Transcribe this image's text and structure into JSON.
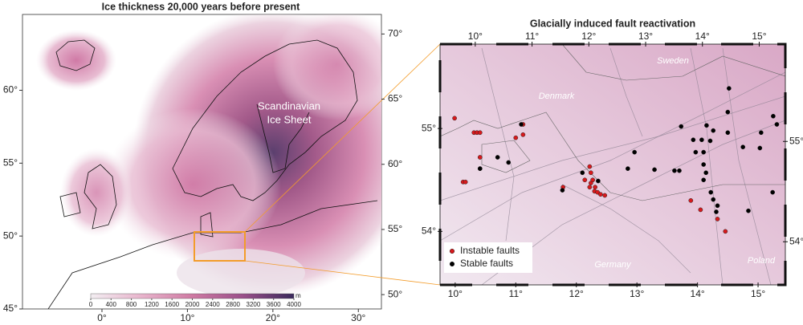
{
  "left_map": {
    "title": "Ice thickness 20,000 years before present",
    "ice_sheet_label": [
      "Scandinavian",
      "Ice Sheet"
    ],
    "xlim": [
      -9.3,
      32.7
    ],
    "xticks": [
      {
        "value": 0,
        "label": "0°"
      },
      {
        "value": 10,
        "label": "10°"
      },
      {
        "value": 20,
        "label": "20°"
      },
      {
        "value": 30,
        "label": "30°"
      }
    ],
    "ylim_left": [
      45,
      65.2
    ],
    "yticks_left": [
      {
        "value": 45,
        "label": "45°"
      },
      {
        "value": 50,
        "label": "50°"
      },
      {
        "value": 55,
        "label": "55°"
      },
      {
        "value": 60,
        "label": "60°"
      }
    ],
    "ylim_right": [
      48.9,
      71.5
    ],
    "yticks_right": [
      {
        "value": 50,
        "label": "50°"
      },
      {
        "value": 55,
        "label": "55°"
      },
      {
        "value": 60,
        "label": "60°"
      },
      {
        "value": 65,
        "label": "65°"
      },
      {
        "value": 70,
        "label": "70°"
      }
    ],
    "colorbar": {
      "lim": [
        0,
        4000
      ],
      "ticks": [
        0,
        400,
        800,
        1200,
        1600,
        2000,
        2400,
        2800,
        3200,
        3600,
        4000
      ],
      "unit": "m",
      "colors": [
        "#f3eef2",
        "#e8b4cc",
        "#cf7aa3",
        "#9a4f8a",
        "#3b2a5c"
      ]
    }
  },
  "right_map": {
    "title": "Glacially induced fault reactivation",
    "xlim_top": [
      9.38,
      15.46
    ],
    "xticks_top": [
      {
        "value": 10,
        "label": "10°"
      },
      {
        "value": 11,
        "label": "11°"
      },
      {
        "value": 12,
        "label": "12°"
      },
      {
        "value": 13,
        "label": "13°"
      },
      {
        "value": 14,
        "label": "14°"
      },
      {
        "value": 15,
        "label": "15°"
      }
    ],
    "xlim_bottom": [
      9.75,
      15.45
    ],
    "xticks_bottom": [
      {
        "value": 10,
        "label": "10°"
      },
      {
        "value": 11,
        "label": "11°"
      },
      {
        "value": 12,
        "label": "12°"
      },
      {
        "value": 13,
        "label": "13°"
      },
      {
        "value": 14,
        "label": "14°"
      },
      {
        "value": 15,
        "label": "15°"
      }
    ],
    "ylim_left": [
      53.48,
      55.82
    ],
    "yticks_left": [
      {
        "value": 54,
        "label": "54°"
      },
      {
        "value": 55,
        "label": "55°"
      }
    ],
    "ylim_right": [
      53.57,
      55.97
    ],
    "yticks_right": [
      {
        "value": 54,
        "label": "54°"
      },
      {
        "value": 55,
        "label": "55°"
      }
    ],
    "places": [
      "Sweden",
      "Denmark",
      "Germany",
      "Poland"
    ],
    "series": [
      {
        "name": "Instable faults",
        "color": "#d7191c",
        "lon": [
          9.99,
          10.31,
          10.36,
          10.41,
          10.41,
          10.41,
          10.13,
          10.17,
          11.12,
          11.12,
          11.0,
          11.78,
          12.22,
          12.24,
          12.14,
          12.24,
          12.22,
          12.3,
          12.35,
          12.4,
          12.47,
          12.27,
          12.31,
          13.89,
          14.05,
          14.33,
          14.46
        ],
        "lat": [
          55.1,
          54.96,
          54.96,
          54.96,
          54.72,
          54.61,
          54.48,
          54.48,
          55.04,
          54.94,
          54.91,
          54.43,
          54.63,
          54.57,
          54.5,
          54.47,
          54.43,
          54.39,
          54.38,
          54.36,
          54.35,
          54.5,
          54.43,
          54.3,
          54.21,
          54.12,
          54.0
        ]
      },
      {
        "name": "Stable faults",
        "color": "#000000",
        "lon": [
          10.41,
          10.7,
          10.88,
          11.09,
          11.77,
          12.1,
          12.36,
          12.85,
          12.96,
          13.29,
          13.62,
          13.7,
          13.93,
          13.97,
          14.07,
          14.1,
          14.1,
          14.14,
          14.1,
          14.22,
          14.26,
          14.33,
          14.31,
          14.15,
          14.5,
          14.52,
          14.5,
          14.75,
          14.84,
          15.03,
          15.05,
          15.25,
          15.31,
          15.24,
          13.73,
          14.21,
          14.26
        ],
        "lat": [
          54.61,
          54.72,
          54.67,
          55.04,
          54.4,
          54.57,
          54.49,
          54.61,
          54.77,
          54.6,
          54.59,
          54.59,
          54.89,
          54.77,
          54.89,
          54.77,
          54.65,
          54.57,
          54.5,
          54.38,
          54.31,
          54.25,
          54.19,
          55.03,
          54.96,
          55.39,
          55.16,
          54.82,
          54.2,
          54.81,
          54.96,
          55.12,
          55.04,
          54.38,
          55.02,
          54.88,
          54.98
        ]
      }
    ]
  }
}
